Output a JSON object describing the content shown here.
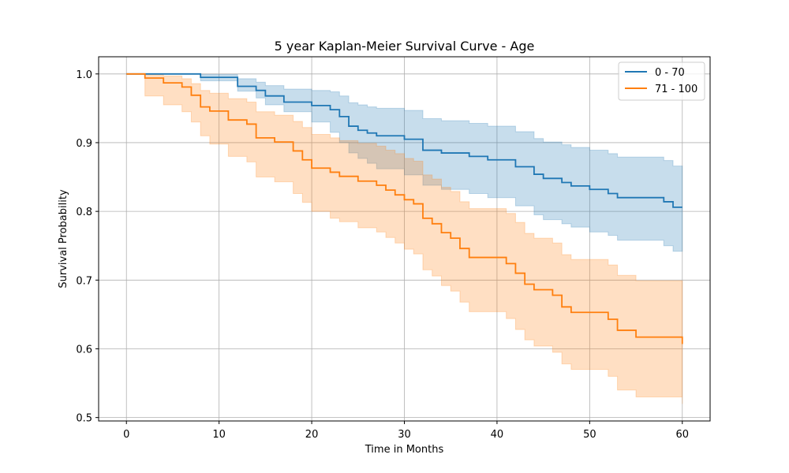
{
  "chart_data": {
    "type": "line",
    "step": true,
    "title": "5 year Kaplan-Meier Survival Curve - Age",
    "xlabel": "Time in Months",
    "ylabel": "Survival Probability",
    "xlim": [
      -3,
      63
    ],
    "ylim": [
      0.495,
      1.025
    ],
    "xticks": [
      0,
      10,
      20,
      30,
      40,
      50,
      60
    ],
    "yticks": [
      0.5,
      0.6,
      0.7,
      0.8,
      0.9,
      1.0
    ],
    "ytick_labels": [
      "0.5",
      "0.6",
      "0.7",
      "0.8",
      "0.9",
      "1.0"
    ],
    "grid": true,
    "legend_position": "top-right",
    "series": [
      {
        "name": "0 - 70",
        "color": "#1f77b4",
        "band_color": "#1f77b4",
        "x": [
          0,
          8,
          12,
          14,
          15,
          17,
          20,
          22,
          23,
          24,
          25,
          26,
          27,
          30,
          32,
          34,
          37,
          39,
          42,
          44,
          45,
          47,
          48,
          50,
          52,
          53,
          58,
          59,
          60
        ],
        "y": [
          1.0,
          0.995,
          0.982,
          0.976,
          0.968,
          0.959,
          0.954,
          0.948,
          0.938,
          0.924,
          0.918,
          0.914,
          0.91,
          0.905,
          0.889,
          0.885,
          0.88,
          0.875,
          0.865,
          0.854,
          0.848,
          0.842,
          0.837,
          0.832,
          0.826,
          0.82,
          0.814,
          0.806,
          0.806
        ],
        "lower": [
          1.0,
          0.99,
          0.975,
          0.965,
          0.955,
          0.945,
          0.93,
          0.915,
          0.9,
          0.885,
          0.877,
          0.87,
          0.862,
          0.853,
          0.838,
          0.832,
          0.826,
          0.82,
          0.808,
          0.795,
          0.788,
          0.782,
          0.777,
          0.77,
          0.765,
          0.758,
          0.75,
          0.742,
          0.742
        ],
        "upper": [
          1.0,
          0.999,
          0.993,
          0.988,
          0.983,
          0.978,
          0.976,
          0.974,
          0.968,
          0.958,
          0.955,
          0.952,
          0.95,
          0.947,
          0.935,
          0.932,
          0.928,
          0.924,
          0.916,
          0.906,
          0.901,
          0.897,
          0.893,
          0.889,
          0.884,
          0.879,
          0.874,
          0.866,
          0.866
        ]
      },
      {
        "name": "71 - 100",
        "color": "#ff7f0e",
        "band_color": "#ff7f0e",
        "x": [
          0,
          2,
          4,
          6,
          7,
          8,
          9,
          11,
          13,
          14,
          16,
          18,
          19,
          20,
          22,
          23,
          25,
          27,
          28,
          29,
          30,
          31,
          32,
          33,
          34,
          35,
          36,
          37,
          41,
          42,
          43,
          44,
          46,
          47,
          48,
          52,
          53,
          55,
          60
        ],
        "y": [
          1.0,
          0.994,
          0.987,
          0.981,
          0.969,
          0.952,
          0.946,
          0.933,
          0.927,
          0.907,
          0.901,
          0.888,
          0.875,
          0.863,
          0.857,
          0.851,
          0.844,
          0.838,
          0.831,
          0.824,
          0.817,
          0.811,
          0.79,
          0.782,
          0.769,
          0.761,
          0.746,
          0.733,
          0.724,
          0.71,
          0.694,
          0.686,
          0.678,
          0.661,
          0.653,
          0.643,
          0.627,
          0.617,
          0.607
        ],
        "lower": [
          1.0,
          0.968,
          0.955,
          0.945,
          0.93,
          0.91,
          0.898,
          0.88,
          0.872,
          0.85,
          0.843,
          0.826,
          0.813,
          0.8,
          0.79,
          0.785,
          0.776,
          0.77,
          0.762,
          0.754,
          0.745,
          0.738,
          0.715,
          0.706,
          0.692,
          0.684,
          0.668,
          0.654,
          0.644,
          0.628,
          0.613,
          0.604,
          0.595,
          0.578,
          0.57,
          0.56,
          0.54,
          0.53,
          0.52
        ],
        "upper": [
          1.0,
          0.999,
          0.997,
          0.993,
          0.986,
          0.976,
          0.972,
          0.964,
          0.959,
          0.945,
          0.94,
          0.931,
          0.922,
          0.912,
          0.907,
          0.903,
          0.899,
          0.895,
          0.889,
          0.884,
          0.877,
          0.873,
          0.853,
          0.847,
          0.835,
          0.829,
          0.814,
          0.804,
          0.797,
          0.784,
          0.768,
          0.761,
          0.754,
          0.737,
          0.73,
          0.722,
          0.707,
          0.699,
          0.693
        ]
      }
    ]
  }
}
